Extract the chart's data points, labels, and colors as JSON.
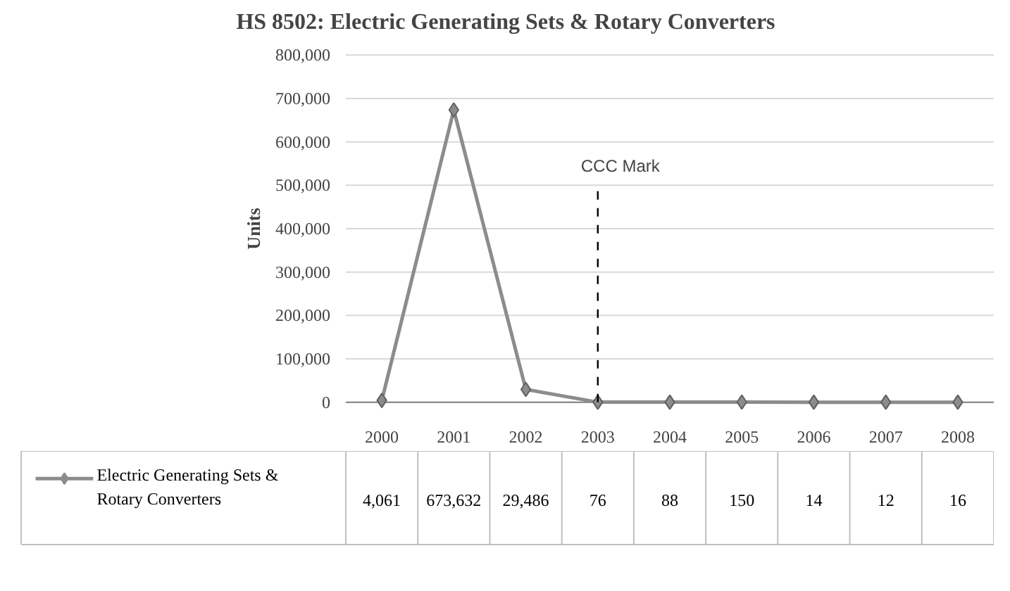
{
  "chart_data": {
    "type": "line",
    "title": "HS 8502: Electric Generating Sets & Rotary Converters",
    "ylabel": "Units",
    "categories": [
      "2000",
      "2001",
      "2002",
      "2003",
      "2004",
      "2005",
      "2006",
      "2007",
      "2008"
    ],
    "series": [
      {
        "name": "Electric Generating Sets & Rotary Converters",
        "color": "#8c8c8c",
        "values": [
          4061,
          673632,
          29486,
          76,
          88,
          150,
          14,
          12,
          16
        ],
        "value_labels": [
          "4,061",
          "673,632",
          "29,486",
          "76",
          "88",
          "150",
          "14",
          "12",
          "16"
        ]
      }
    ],
    "ylim": [
      0,
      800000
    ],
    "yticks": [
      {
        "value": 0,
        "label": "0"
      },
      {
        "value": 100000,
        "label": "100,000"
      },
      {
        "value": 200000,
        "label": "200,000"
      },
      {
        "value": 300000,
        "label": "300,000"
      },
      {
        "value": 400000,
        "label": "400,000"
      },
      {
        "value": 500000,
        "label": "500,000"
      },
      {
        "value": 600000,
        "label": "600,000"
      },
      {
        "value": 700000,
        "label": "700,000"
      },
      {
        "value": 800000,
        "label": "800,000"
      }
    ],
    "ref_lines": [
      {
        "axis": "x",
        "value": "2003",
        "label": "CCC Mark",
        "line_style": "dashed",
        "color": "#000000"
      }
    ],
    "data_labels": true,
    "grid": "y",
    "legend": "bottom",
    "marker": "diamond",
    "line_style": "solid"
  }
}
